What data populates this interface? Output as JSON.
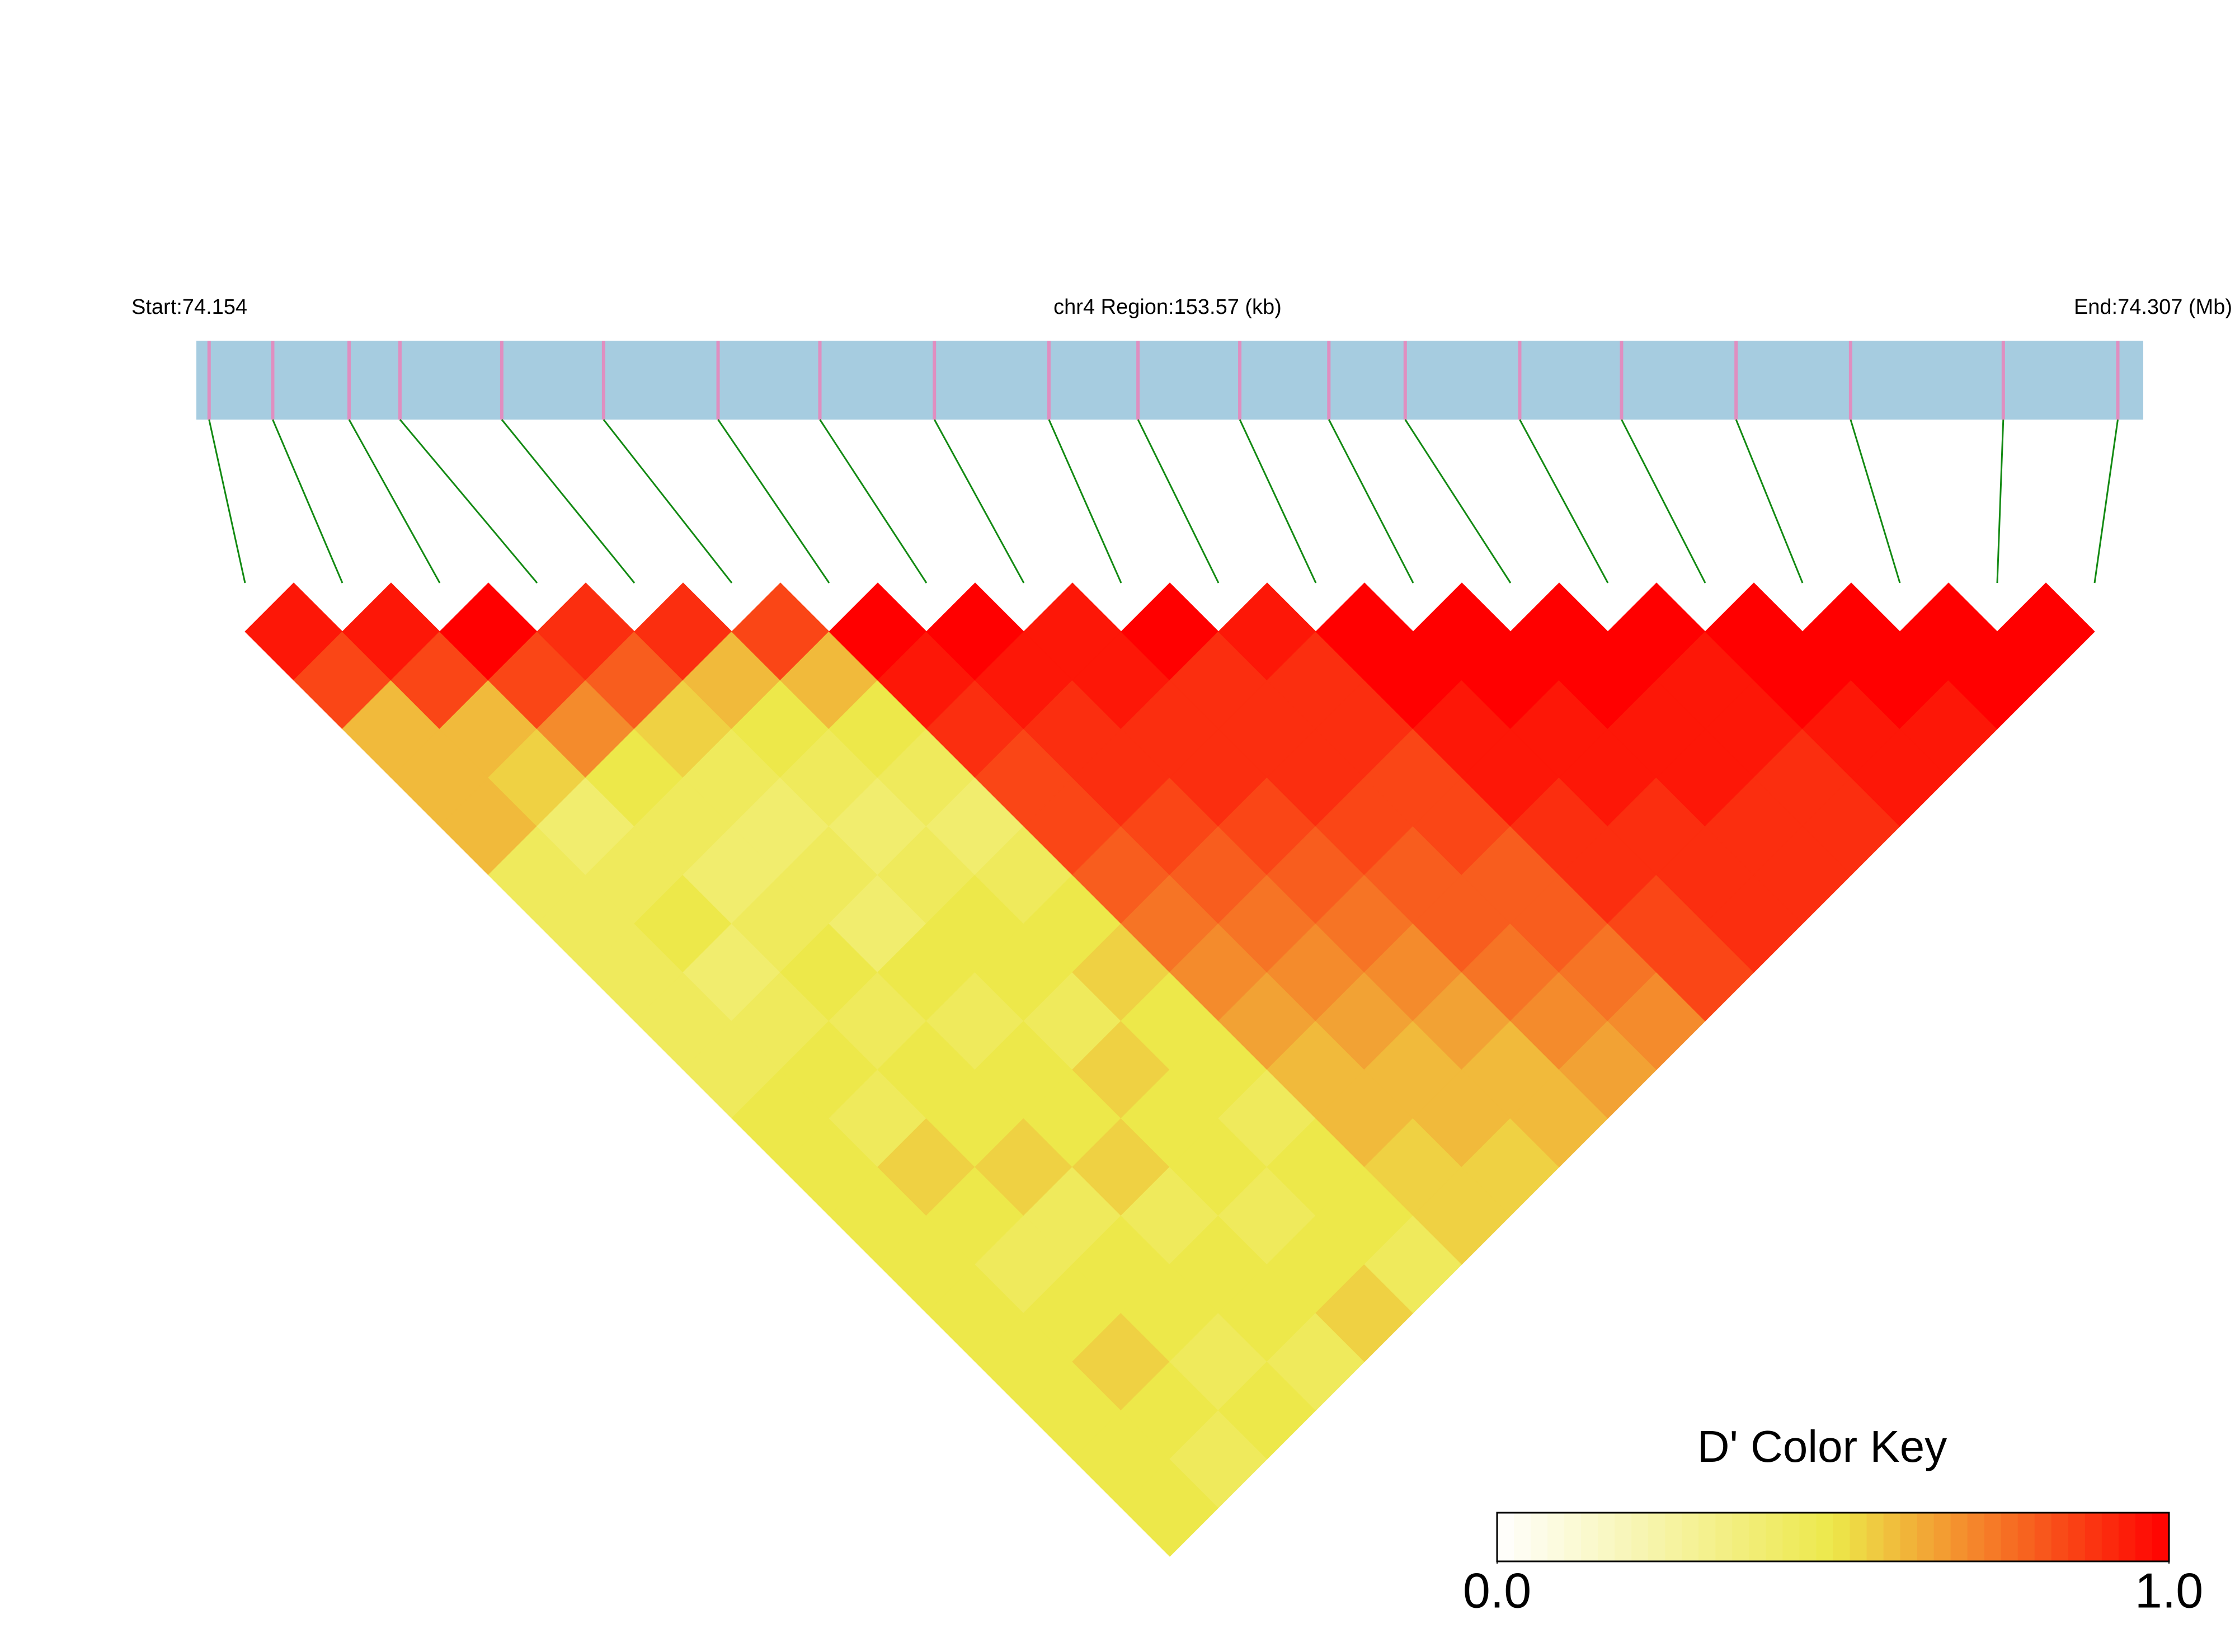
{
  "chart_data": {
    "type": "ld_heatmap",
    "start_label": "Start:74.154",
    "region_label": "chr4 Region:153.57 (kb)",
    "end_label": "End:74.307 (Mb)",
    "xlim": [
      74.154,
      74.307
    ],
    "snp_positions": [
      74.155,
      74.16,
      74.166,
      74.17,
      74.178,
      74.186,
      74.195,
      74.203,
      74.212,
      74.221,
      74.228,
      74.236,
      74.243,
      74.249,
      74.258,
      74.266,
      74.275,
      74.284,
      74.296,
      74.305
    ],
    "matrix": [
      [
        0.95,
        0.85,
        0.6,
        0.6,
        0.6,
        0.45,
        0.45,
        0.45,
        0.45,
        0.45,
        0.5,
        0.5,
        0.5,
        0.5,
        0.5,
        0.5,
        0.5,
        0.5,
        0.5
      ],
      [
        0.95,
        0.85,
        0.6,
        0.55,
        0.4,
        0.45,
        0.5,
        0.4,
        0.45,
        0.5,
        0.45,
        0.55,
        0.5,
        0.45,
        0.5,
        0.55,
        0.5,
        0.45
      ],
      [
        1,
        0.85,
        0.7,
        0.5,
        0.45,
        0.4,
        0.45,
        0.5,
        0.45,
        0.5,
        0.5,
        0.55,
        0.45,
        0.5,
        0.5,
        0.45,
        0.5
      ],
      [
        0.9,
        0.8,
        0.55,
        0.45,
        0.4,
        0.45,
        0.4,
        0.5,
        0.45,
        0.5,
        0.5,
        0.55,
        0.45,
        0.5,
        0.5,
        0.45
      ],
      [
        0.9,
        0.6,
        0.5,
        0.45,
        0.4,
        0.45,
        0.5,
        0.5,
        0.45,
        0.55,
        0.5,
        0.5,
        0.45,
        0.5,
        0.55
      ],
      [
        0.85,
        0.6,
        0.5,
        0.45,
        0.4,
        0.45,
        0.5,
        0.55,
        0.5,
        0.5,
        0.45,
        0.5,
        0.5,
        0.45
      ],
      [
        1,
        0.95,
        0.9,
        0.85,
        0.85,
        0.8,
        0.75,
        0.7,
        0.65,
        0.6,
        0.6,
        0.55,
        0.55
      ],
      [
        1,
        0.95,
        0.9,
        0.9,
        0.85,
        0.8,
        0.75,
        0.7,
        0.65,
        0.6,
        0.6,
        0.55
      ],
      [
        0.95,
        0.95,
        0.9,
        0.9,
        0.85,
        0.8,
        0.75,
        0.7,
        0.65,
        0.6,
        0.6
      ],
      [
        1,
        0.9,
        0.9,
        0.9,
        0.85,
        0.8,
        0.8,
        0.75,
        0.7,
        0.65
      ],
      [
        0.95,
        0.9,
        0.9,
        0.85,
        0.85,
        0.8,
        0.8,
        0.75,
        0.7
      ],
      [
        1,
        1,
        0.95,
        0.95,
        0.9,
        0.9,
        0.85,
        0.85
      ],
      [
        1,
        1,
        0.95,
        0.95,
        0.9,
        0.9,
        0.9
      ],
      [
        1,
        1,
        0.95,
        0.95,
        0.9,
        0.9
      ],
      [
        1,
        0.95,
        0.95,
        0.9,
        0.9
      ],
      [
        1,
        1,
        0.95,
        0.95
      ],
      [
        1,
        1,
        0.95
      ],
      [
        1,
        1
      ],
      [
        1
      ]
    ],
    "colors": [
      "#ffffff",
      "#ede84a",
      "#ff0000"
    ],
    "key_title": "D' Color Key",
    "key_lim": [
      0,
      1
    ],
    "key_ticks": [
      {
        "value": 0,
        "label": "0.0"
      },
      {
        "value": 1,
        "label": "1.0"
      }
    ]
  }
}
